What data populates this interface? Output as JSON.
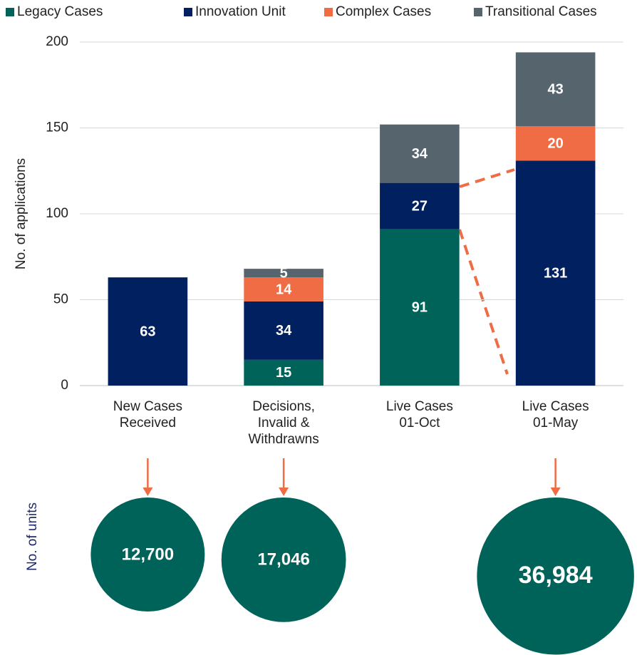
{
  "chart_data": {
    "type": "bar",
    "stacked": true,
    "y_label": "No. of applications",
    "categories": [
      "New Cases\nReceived",
      "Decisions,\nInvalid &\nWithdrawns",
      "Live Cases\n01-Oct",
      "Live Cases\n01-May"
    ],
    "series": [
      {
        "name": "Legacy Cases",
        "color": "#00635a",
        "values": [
          null,
          15,
          91,
          null
        ]
      },
      {
        "name": "Innovation Unit",
        "color": "#002060",
        "values": [
          63,
          34,
          27,
          131
        ]
      },
      {
        "name": "Complex Cases",
        "color": "#ef6c45",
        "values": [
          null,
          14,
          null,
          20
        ]
      },
      {
        "name": "Transitional Cases",
        "color": "#56646e",
        "values": [
          null,
          5,
          34,
          43
        ]
      }
    ],
    "ylim": [
      0,
      200
    ],
    "yticks": [
      0,
      50,
      100,
      150,
      200
    ],
    "grid": true,
    "units": {
      "label": "No. of units",
      "color": "#00635a",
      "values": [
        12700,
        17046,
        null,
        36984
      ],
      "value_labels": [
        "12,700",
        "17,046",
        null,
        "36,984"
      ]
    }
  }
}
